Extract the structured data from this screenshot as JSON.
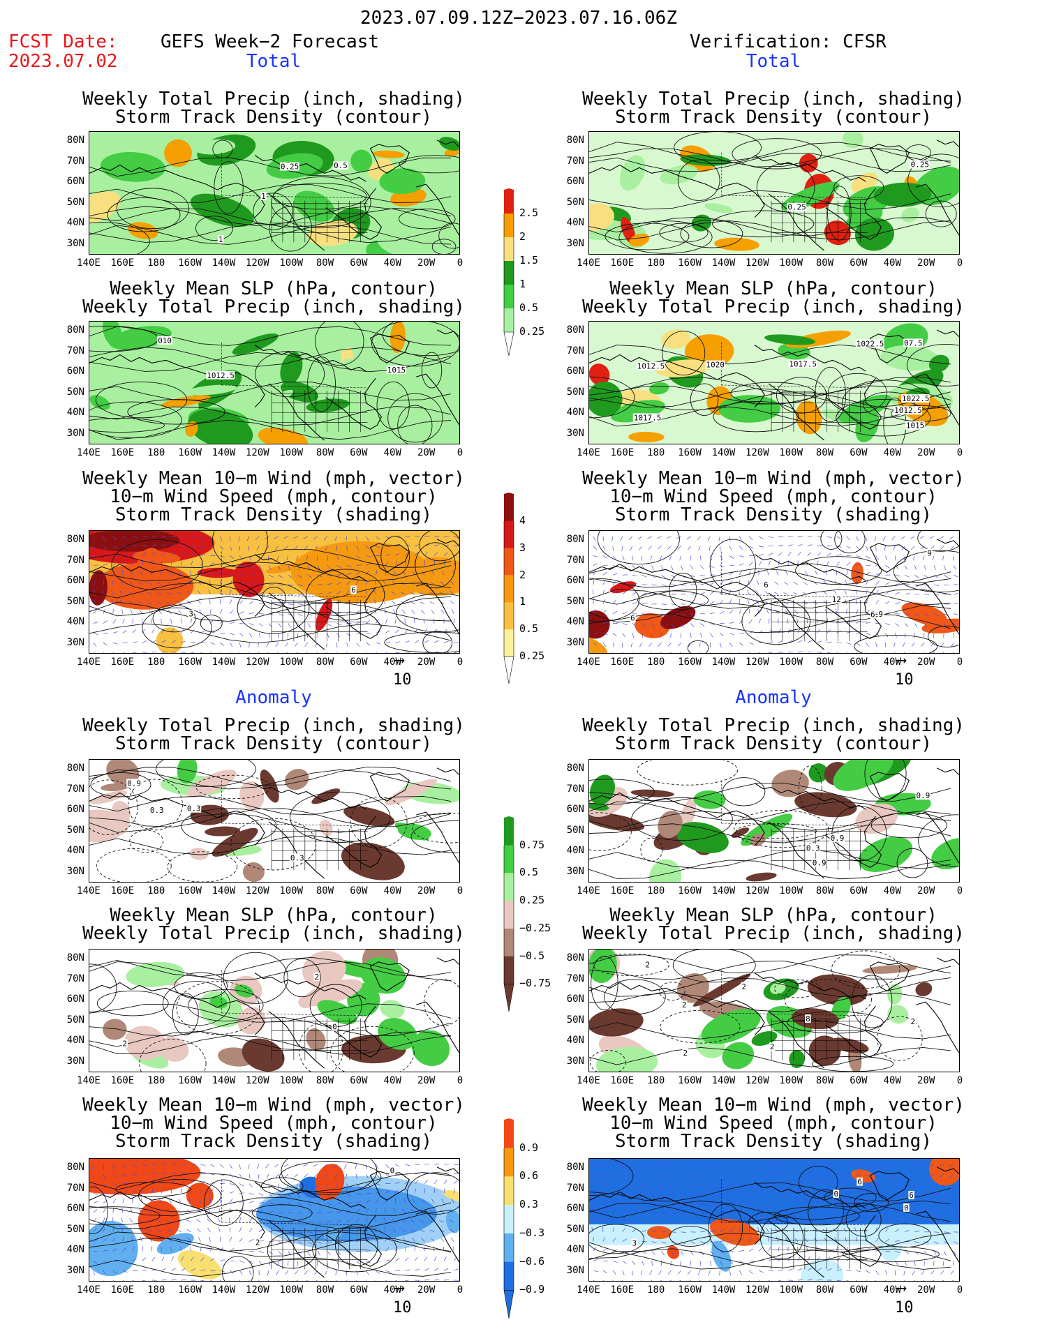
{
  "header": {
    "date_range": "2023.07.09.12Z−2023.07.16.06Z",
    "fcst_label": "FCST Date:",
    "fcst_date": "2023.07.02",
    "left_title": "GEFS Week−2 Forecast",
    "right_title": "Verification: CFSR",
    "total_label": "Total",
    "anomaly_label": "Anomaly"
  },
  "titles": {
    "precip_track": [
      "Weekly Total Precip (inch, shading)",
      "Storm Track Density (contour)"
    ],
    "slp_precip": [
      "Weekly Mean SLP (hPa, contour)",
      "Weekly Total Precip (inch, shading)"
    ],
    "wind": [
      "Weekly Mean 10−m Wind (mph, vector)",
      "10−m Wind Speed (mph, contour)",
      "Storm Track Density (shading)"
    ]
  },
  "axes": {
    "lat_labels": [
      "80N",
      "70N",
      "60N",
      "50N",
      "40N",
      "30N"
    ],
    "lon_labels": [
      "140E",
      "160E",
      "180",
      "160W",
      "140W",
      "120W",
      "100W",
      "80W",
      "60W",
      "40W",
      "20W",
      "0"
    ]
  },
  "vector_ref": "10",
  "colorbars": {
    "precip_total": {
      "labels": [
        "2.5",
        "2",
        "1.5",
        "1",
        "0.5",
        "0.25"
      ],
      "colors": [
        "#e02010",
        "#f5a000",
        "#f8e080",
        "#1f9a1f",
        "#44cc44",
        "#a8f0a0"
      ]
    },
    "track_total": {
      "labels": [
        "4",
        "3",
        "2",
        "1",
        "0.5",
        "0.25"
      ],
      "colors": [
        "#8b0f0f",
        "#d81818",
        "#f05818",
        "#f59a10",
        "#f8c040",
        "#fff0a0"
      ]
    },
    "precip_anom": {
      "labels": [
        "0.75",
        "0.5",
        "0.25",
        "−0.25",
        "−0.5",
        "−0.75"
      ],
      "colors": [
        "#1f9a1f",
        "#44cc44",
        "#a8f0a0",
        "#e8c8c0",
        "#b08878",
        "#6a3a30"
      ]
    },
    "track_anom": {
      "labels": [
        "0.9",
        "0.6",
        "0.3",
        "−0.3",
        "−0.6",
        "−0.9"
      ],
      "colors": [
        "#f04818",
        "#f59a10",
        "#f8e070",
        "#c8f0ff",
        "#60b0f0",
        "#1f6fe0"
      ]
    }
  },
  "contour_labels": {
    "p1": [
      "1",
      "0.25",
      "1",
      "0.5"
    ],
    "p2": [
      "1012.5",
      "1015",
      "010"
    ],
    "p3": [
      "6",
      "3"
    ],
    "p4": [
      "0.25",
      "0.25"
    ],
    "p5": [
      "1022.5",
      "1012.5",
      "1017.5",
      "1012.5",
      "1015",
      "07.5",
      "1022.5",
      "1020",
      "1017.5"
    ],
    "p6": [
      "6",
      "9",
      "12",
      "6",
      "9",
      "6"
    ],
    "p7": [
      "0.3",
      "0.3",
      "0.3",
      "0.9"
    ],
    "p8": [
      "0",
      "2",
      "2"
    ],
    "p9": [
      "0",
      "2"
    ],
    "p10": [
      "0.9",
      "0.9",
      "0.3",
      "0.9"
    ],
    "p11": [
      "2",
      "2",
      "2",
      "2",
      "8",
      "2",
      "2"
    ],
    "p12": [
      "6",
      "3",
      "0",
      "6",
      "0"
    ]
  }
}
